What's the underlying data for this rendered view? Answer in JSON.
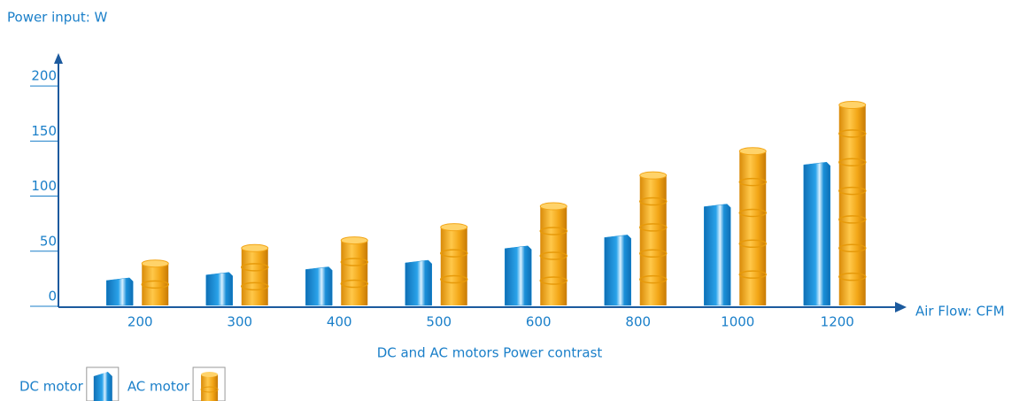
{
  "chart_data": {
    "type": "bar",
    "title": "DC and AC motors Power contrast",
    "y_label": "Power input: W",
    "x_label": "Air Flow: CFM",
    "categories": [
      "200",
      "300",
      "400",
      "500",
      "600",
      "800",
      "1000",
      "1200"
    ],
    "series": [
      {
        "name": "DC motor",
        "color": "#1a8fd8",
        "values": [
          25,
          30,
          35,
          41,
          54,
          64,
          92,
          130
        ]
      },
      {
        "name": "AC motor",
        "color": "#f2a516",
        "values": [
          38,
          52,
          59,
          71,
          90,
          118,
          140,
          182
        ]
      }
    ],
    "ylim": [
      0,
      225
    ],
    "yticks": [
      0,
      50,
      100,
      150,
      200
    ],
    "grid": false,
    "legend": "bottom-left"
  }
}
